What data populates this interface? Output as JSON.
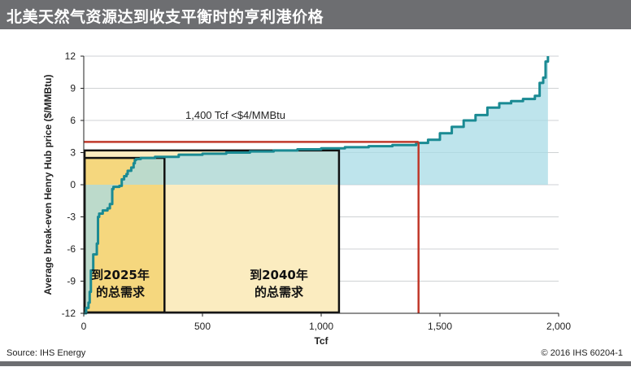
{
  "header": {
    "title": "北美天然气资源达到收支平衡时的亨利港价格"
  },
  "footer": {
    "source": "Source: IHS Energy",
    "copyright": "© 2016 IHS   60204-1"
  },
  "colors": {
    "curve": "#1a8a93",
    "area": "#a8dbe6",
    "threshold": "#c0392b",
    "box2025": "#f5d77e",
    "box2040": "#fbecc0",
    "frame": "#6d6e71"
  },
  "chart_data": {
    "type": "area",
    "title": "",
    "xlabel": "Tcf",
    "ylabel": "Average break-even Henry Hub price ($/MMBtu)",
    "xlim": [
      0,
      2000
    ],
    "ylim": [
      -12,
      12
    ],
    "xticks": [
      "0",
      "500",
      "1,000",
      "1,500",
      "2,000"
    ],
    "yticks": [
      "12",
      "9",
      "6",
      "3",
      "0",
      "-3",
      "-6",
      "-9",
      "-12"
    ],
    "xtick_values": [
      0,
      500,
      1000,
      1500,
      2000
    ],
    "ytick_values": [
      12,
      9,
      6,
      3,
      0,
      -3,
      -6,
      -9,
      -12
    ],
    "grid": "horizontal",
    "series": [
      {
        "x": [
          0,
          10,
          20,
          25,
          30,
          40,
          55,
          60,
          65,
          80,
          100,
          110,
          120,
          125,
          150,
          160,
          170,
          180,
          185,
          200,
          210,
          215,
          220,
          240,
          300,
          400,
          500,
          600,
          700,
          800,
          900,
          1000,
          1100,
          1200,
          1300,
          1400,
          1450,
          1500,
          1550,
          1600,
          1650,
          1700,
          1750,
          1800,
          1850,
          1900,
          1920,
          1935,
          1945,
          1955
        ],
        "y": [
          -12,
          -11.5,
          -11,
          -10,
          -8,
          -6.5,
          -5.5,
          -3,
          -2.7,
          -2.4,
          -2.2,
          -1.8,
          -0.4,
          -0.2,
          -0.1,
          0.5,
          0.8,
          1.0,
          1.3,
          1.6,
          2.0,
          2.3,
          2.4,
          2.5,
          2.6,
          2.8,
          2.9,
          3.0,
          3.1,
          3.2,
          3.3,
          3.4,
          3.5,
          3.6,
          3.7,
          3.9,
          4.2,
          4.8,
          5.4,
          6.0,
          6.5,
          7.2,
          7.6,
          7.8,
          8.0,
          8.3,
          9.5,
          10.0,
          11.5,
          12.0
        ]
      }
    ],
    "threshold_line": {
      "x": 1410,
      "y": 4.0
    },
    "annotations": [
      {
        "text": "1,400 Tcf <$4/MMBtu"
      },
      {
        "line1": "到2025年",
        "line2": "的总需求",
        "x_end": 340,
        "y_top": 2.5
      },
      {
        "line1": "到2040年",
        "line2": "的总需求",
        "x_end": 1075,
        "y_top": 3.2
      }
    ]
  }
}
